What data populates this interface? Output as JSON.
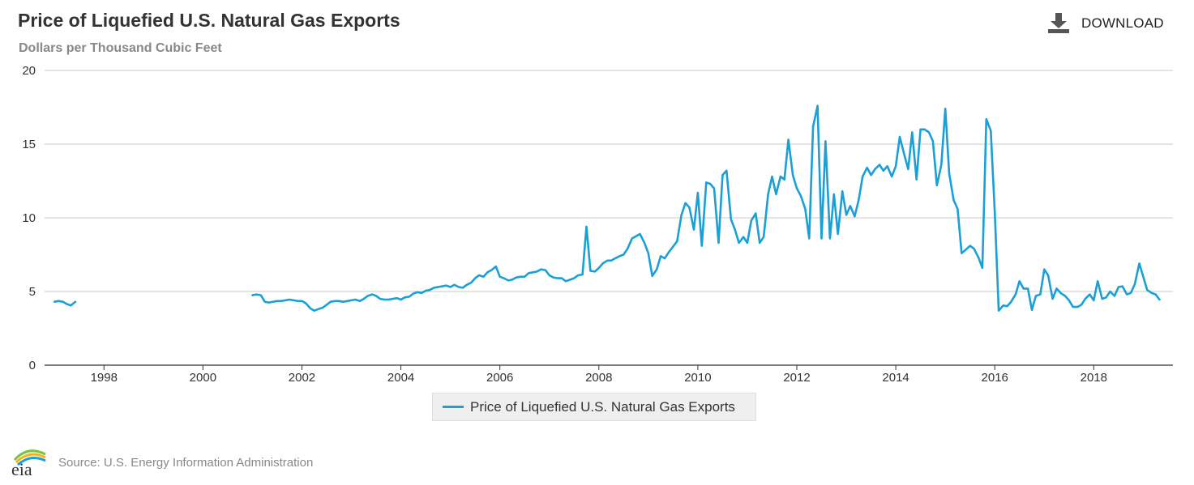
{
  "header": {
    "title": "Price of Liquefied U.S. Natural Gas Exports",
    "subtitle": "Dollars per Thousand Cubic Feet",
    "download_label": "DOWNLOAD"
  },
  "footer": {
    "logo_text": "eia",
    "source": "Source: U.S. Energy Information Administration"
  },
  "colors": {
    "series": "#1a9fd6",
    "grid": "#c8c8c8",
    "axis": "#333333"
  },
  "chart_data": {
    "type": "line",
    "title": "Price of Liquefied U.S. Natural Gas Exports",
    "ylabel": "Dollars per Thousand Cubic Feet",
    "xlabel": "",
    "xlim": [
      1996.8,
      2019.6
    ],
    "ylim": [
      0,
      20
    ],
    "yticks": [
      0,
      5,
      10,
      15,
      20
    ],
    "xticks": [
      1998,
      2000,
      2002,
      2004,
      2006,
      2008,
      2010,
      2012,
      2014,
      2016,
      2018
    ],
    "grid": true,
    "legend": "bottom-center",
    "series": [
      {
        "name": "Price of Liquefied U.S. Natural Gas Exports",
        "points": [
          [
            1997.0,
            4.3
          ],
          [
            1997.08,
            4.35
          ],
          [
            1997.17,
            4.3
          ],
          [
            1997.25,
            4.15
          ],
          [
            1997.33,
            4.05
          ],
          [
            1997.42,
            4.3
          ],
          null,
          [
            2001.0,
            4.75
          ],
          [
            2001.08,
            4.8
          ],
          [
            2001.17,
            4.75
          ],
          [
            2001.25,
            4.3
          ],
          [
            2001.33,
            4.25
          ],
          [
            2001.42,
            4.3
          ],
          [
            2001.5,
            4.35
          ],
          [
            2001.58,
            4.35
          ],
          [
            2001.67,
            4.4
          ],
          [
            2001.75,
            4.45
          ],
          [
            2001.83,
            4.4
          ],
          [
            2001.92,
            4.35
          ],
          [
            2002.0,
            4.35
          ],
          [
            2002.08,
            4.2
          ],
          [
            2002.17,
            3.85
          ],
          [
            2002.25,
            3.7
          ],
          [
            2002.33,
            3.8
          ],
          [
            2002.42,
            3.9
          ],
          [
            2002.5,
            4.1
          ],
          [
            2002.58,
            4.3
          ],
          [
            2002.67,
            4.35
          ],
          [
            2002.75,
            4.35
          ],
          [
            2002.83,
            4.3
          ],
          [
            2002.92,
            4.35
          ],
          [
            2003.0,
            4.4
          ],
          [
            2003.08,
            4.45
          ],
          [
            2003.17,
            4.35
          ],
          [
            2003.25,
            4.5
          ],
          [
            2003.33,
            4.7
          ],
          [
            2003.42,
            4.8
          ],
          [
            2003.5,
            4.7
          ],
          [
            2003.58,
            4.5
          ],
          [
            2003.67,
            4.45
          ],
          [
            2003.75,
            4.45
          ],
          [
            2003.83,
            4.5
          ],
          [
            2003.92,
            4.55
          ],
          [
            2004.0,
            4.45
          ],
          [
            2004.08,
            4.6
          ],
          [
            2004.17,
            4.65
          ],
          [
            2004.25,
            4.85
          ],
          [
            2004.33,
            4.95
          ],
          [
            2004.42,
            4.9
          ],
          [
            2004.5,
            5.05
          ],
          [
            2004.58,
            5.1
          ],
          [
            2004.67,
            5.25
          ],
          [
            2004.75,
            5.3
          ],
          [
            2004.83,
            5.35
          ],
          [
            2004.92,
            5.4
          ],
          [
            2005.0,
            5.3
          ],
          [
            2005.08,
            5.45
          ],
          [
            2005.17,
            5.3
          ],
          [
            2005.25,
            5.25
          ],
          [
            2005.33,
            5.45
          ],
          [
            2005.42,
            5.6
          ],
          [
            2005.5,
            5.9
          ],
          [
            2005.58,
            6.1
          ],
          [
            2005.67,
            6.0
          ],
          [
            2005.75,
            6.3
          ],
          [
            2005.83,
            6.45
          ],
          [
            2005.92,
            6.7
          ],
          [
            2006.0,
            6.0
          ],
          [
            2006.08,
            5.9
          ],
          [
            2006.17,
            5.75
          ],
          [
            2006.25,
            5.8
          ],
          [
            2006.33,
            5.95
          ],
          [
            2006.42,
            6.0
          ],
          [
            2006.5,
            6.0
          ],
          [
            2006.58,
            6.25
          ],
          [
            2006.67,
            6.3
          ],
          [
            2006.75,
            6.35
          ],
          [
            2006.83,
            6.5
          ],
          [
            2006.92,
            6.45
          ],
          [
            2007.0,
            6.1
          ],
          [
            2007.08,
            5.95
          ],
          [
            2007.17,
            5.9
          ],
          [
            2007.25,
            5.9
          ],
          [
            2007.33,
            5.7
          ],
          [
            2007.42,
            5.8
          ],
          [
            2007.5,
            5.9
          ],
          [
            2007.58,
            6.1
          ],
          [
            2007.67,
            6.15
          ],
          [
            2007.75,
            9.4
          ],
          [
            2007.83,
            6.4
          ],
          [
            2007.92,
            6.35
          ],
          [
            2008.0,
            6.6
          ],
          [
            2008.08,
            6.9
          ],
          [
            2008.17,
            7.1
          ],
          [
            2008.25,
            7.1
          ],
          [
            2008.33,
            7.25
          ],
          [
            2008.42,
            7.4
          ],
          [
            2008.5,
            7.5
          ],
          [
            2008.58,
            7.9
          ],
          [
            2008.67,
            8.6
          ],
          [
            2008.75,
            8.75
          ],
          [
            2008.83,
            8.9
          ],
          [
            2008.92,
            8.3
          ],
          [
            2009.0,
            7.6
          ],
          [
            2009.08,
            6.05
          ],
          [
            2009.17,
            6.5
          ],
          [
            2009.25,
            7.4
          ],
          [
            2009.33,
            7.25
          ],
          [
            2009.42,
            7.7
          ],
          [
            2009.5,
            8.05
          ],
          [
            2009.58,
            8.4
          ],
          [
            2009.67,
            10.2
          ],
          [
            2009.75,
            11.0
          ],
          [
            2009.83,
            10.7
          ],
          [
            2009.92,
            9.2
          ],
          [
            2010.0,
            11.7
          ],
          [
            2010.08,
            8.1
          ],
          [
            2010.17,
            12.4
          ],
          [
            2010.25,
            12.3
          ],
          [
            2010.33,
            12.0
          ],
          [
            2010.42,
            8.3
          ],
          [
            2010.5,
            12.9
          ],
          [
            2010.58,
            13.2
          ],
          [
            2010.67,
            9.9
          ],
          [
            2010.75,
            9.2
          ],
          [
            2010.83,
            8.3
          ],
          [
            2010.92,
            8.7
          ],
          [
            2011.0,
            8.3
          ],
          [
            2011.08,
            9.8
          ],
          [
            2011.17,
            10.3
          ],
          [
            2011.25,
            8.3
          ],
          [
            2011.33,
            8.7
          ],
          [
            2011.42,
            11.6
          ],
          [
            2011.5,
            12.8
          ],
          [
            2011.58,
            11.6
          ],
          [
            2011.67,
            12.8
          ],
          [
            2011.75,
            12.6
          ],
          [
            2011.83,
            15.3
          ],
          [
            2011.92,
            12.9
          ],
          [
            2012.0,
            12.0
          ],
          [
            2012.08,
            11.5
          ],
          [
            2012.17,
            10.6
          ],
          [
            2012.25,
            8.6
          ],
          [
            2012.33,
            16.2
          ],
          [
            2012.42,
            17.6
          ],
          [
            2012.5,
            8.6
          ],
          [
            2012.58,
            15.2
          ],
          [
            2012.67,
            8.6
          ],
          [
            2012.75,
            11.6
          ],
          [
            2012.83,
            8.9
          ],
          [
            2012.92,
            11.8
          ],
          [
            2013.0,
            10.2
          ],
          [
            2013.08,
            10.8
          ],
          [
            2013.17,
            10.1
          ],
          [
            2013.25,
            11.2
          ],
          [
            2013.33,
            12.8
          ],
          [
            2013.42,
            13.4
          ],
          [
            2013.5,
            12.9
          ],
          [
            2013.58,
            13.3
          ],
          [
            2013.67,
            13.6
          ],
          [
            2013.75,
            13.2
          ],
          [
            2013.83,
            13.5
          ],
          [
            2013.92,
            12.8
          ],
          [
            2014.0,
            13.5
          ],
          [
            2014.08,
            15.5
          ],
          [
            2014.17,
            14.3
          ],
          [
            2014.25,
            13.3
          ],
          [
            2014.33,
            15.8
          ],
          [
            2014.42,
            12.6
          ],
          [
            2014.5,
            16.0
          ],
          [
            2014.58,
            16.0
          ],
          [
            2014.67,
            15.8
          ],
          [
            2014.75,
            15.2
          ],
          [
            2014.83,
            12.2
          ],
          [
            2014.92,
            13.6
          ],
          [
            2015.0,
            17.4
          ],
          [
            2015.08,
            13.0
          ],
          [
            2015.17,
            11.2
          ],
          [
            2015.25,
            10.6
          ],
          [
            2015.33,
            7.6
          ],
          [
            2015.42,
            7.85
          ],
          [
            2015.5,
            8.1
          ],
          [
            2015.58,
            7.9
          ],
          [
            2015.67,
            7.3
          ],
          [
            2015.75,
            6.6
          ],
          [
            2015.83,
            16.7
          ],
          [
            2015.92,
            15.9
          ],
          [
            2016.0,
            10.4
          ],
          [
            2016.08,
            3.7
          ],
          [
            2016.17,
            4.05
          ],
          [
            2016.25,
            4.0
          ],
          [
            2016.33,
            4.3
          ],
          [
            2016.42,
            4.8
          ],
          [
            2016.5,
            5.7
          ],
          [
            2016.58,
            5.2
          ],
          [
            2016.67,
            5.2
          ],
          [
            2016.75,
            3.75
          ],
          [
            2016.83,
            4.7
          ],
          [
            2016.92,
            4.8
          ],
          [
            2017.0,
            6.5
          ],
          [
            2017.08,
            6.1
          ],
          [
            2017.17,
            4.5
          ],
          [
            2017.25,
            5.2
          ],
          [
            2017.33,
            4.9
          ],
          [
            2017.42,
            4.7
          ],
          [
            2017.5,
            4.4
          ],
          [
            2017.58,
            3.95
          ],
          [
            2017.67,
            3.95
          ],
          [
            2017.75,
            4.1
          ],
          [
            2017.83,
            4.5
          ],
          [
            2017.92,
            4.8
          ],
          [
            2018.0,
            4.4
          ],
          [
            2018.08,
            5.7
          ],
          [
            2018.17,
            4.5
          ],
          [
            2018.25,
            4.6
          ],
          [
            2018.33,
            5.0
          ],
          [
            2018.42,
            4.7
          ],
          [
            2018.5,
            5.3
          ],
          [
            2018.58,
            5.35
          ],
          [
            2018.67,
            4.8
          ],
          [
            2018.75,
            4.9
          ],
          [
            2018.83,
            5.5
          ],
          [
            2018.92,
            6.9
          ],
          [
            2019.0,
            6.0
          ],
          [
            2019.08,
            5.1
          ],
          [
            2019.17,
            4.9
          ],
          [
            2019.25,
            4.8
          ],
          [
            2019.33,
            4.45
          ]
        ]
      }
    ]
  }
}
